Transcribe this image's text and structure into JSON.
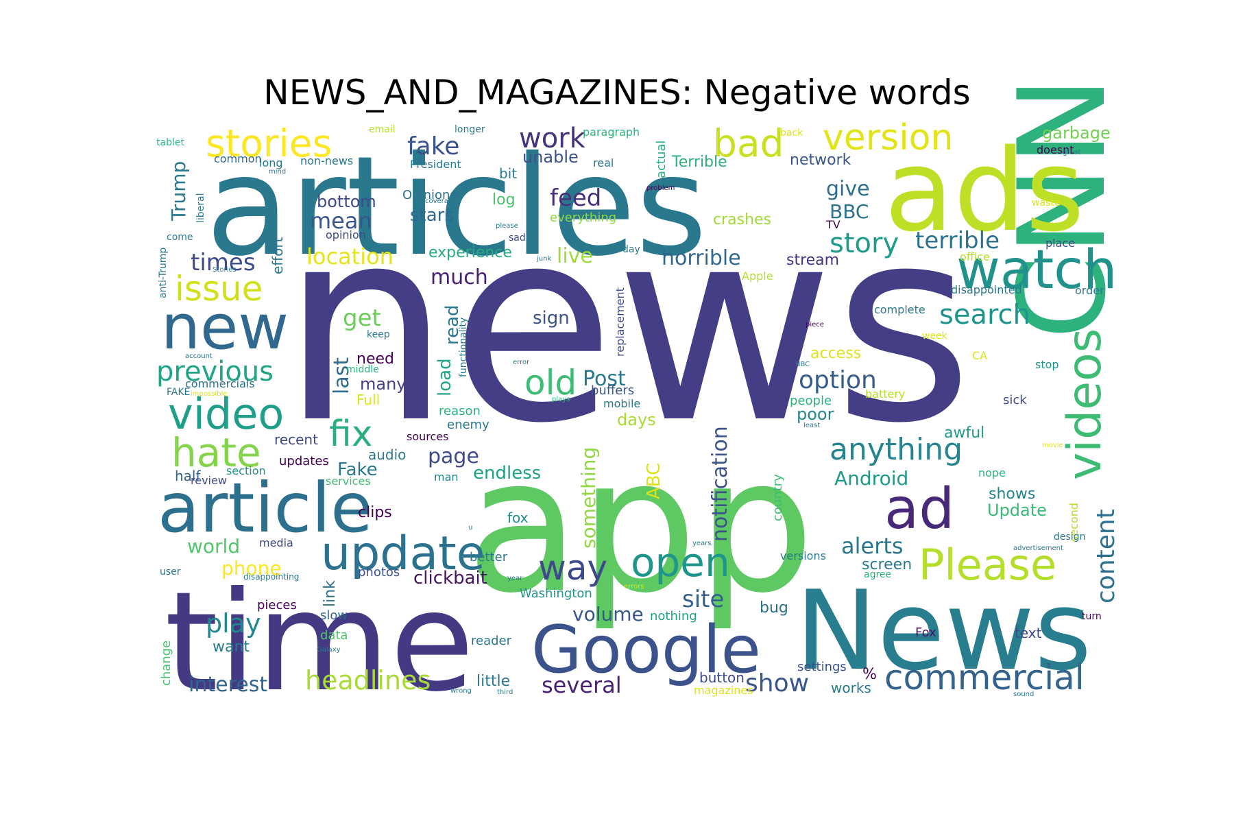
{
  "chart_data": {
    "type": "wordcloud",
    "title": "NEWS_AND_MAGAZINES: Negative words",
    "background": "#ffffff",
    "colormap": "viridis",
    "words": [
      {
        "text": "news",
        "weight": 1.0,
        "color": "#433e85"
      },
      {
        "text": "app",
        "weight": 0.92,
        "color": "#5ec962"
      },
      {
        "text": "articles",
        "weight": 0.72,
        "color": "#2a788e"
      },
      {
        "text": "time",
        "weight": 0.7,
        "color": "#443983"
      },
      {
        "text": "CNN",
        "weight": 0.62,
        "color": "#2db27d"
      },
      {
        "text": "News",
        "weight": 0.6,
        "color": "#287d8e"
      },
      {
        "text": "ads",
        "weight": 0.58,
        "color": "#bddf26"
      },
      {
        "text": "article",
        "weight": 0.4,
        "color": "#2d708e"
      },
      {
        "text": "Google",
        "weight": 0.34,
        "color": "#3b528b"
      },
      {
        "text": "new",
        "weight": 0.3,
        "color": "#31688e"
      },
      {
        "text": "watch",
        "weight": 0.28,
        "color": "#21918c"
      },
      {
        "text": "ad",
        "weight": 0.28,
        "color": "#482878"
      },
      {
        "text": "videos",
        "weight": 0.26,
        "color": "#3fbc73"
      },
      {
        "text": "update",
        "weight": 0.26,
        "color": "#2c728e"
      },
      {
        "text": "video",
        "weight": 0.24,
        "color": "#1f9e89"
      },
      {
        "text": "Please",
        "weight": 0.23,
        "color": "#b5de2b"
      },
      {
        "text": "open",
        "weight": 0.23,
        "color": "#1f968b"
      },
      {
        "text": "hate",
        "weight": 0.22,
        "color": "#84d44b"
      },
      {
        "text": "stories",
        "weight": 0.21,
        "color": "#fde725"
      },
      {
        "text": "bad",
        "weight": 0.21,
        "color": "#c8e020"
      },
      {
        "text": "version",
        "weight": 0.2,
        "color": "#e2e418"
      },
      {
        "text": "commercial",
        "weight": 0.19,
        "color": "#33638d"
      },
      {
        "text": "fix",
        "weight": 0.19,
        "color": "#29af7f"
      },
      {
        "text": "issue",
        "weight": 0.18,
        "color": "#d0e11c"
      },
      {
        "text": "old",
        "weight": 0.18,
        "color": "#3dbc74"
      },
      {
        "text": "way",
        "weight": 0.18,
        "color": "#3e4989"
      },
      {
        "text": "work",
        "weight": 0.16,
        "color": "#46337e"
      },
      {
        "text": "previous",
        "weight": 0.15,
        "color": "#20a486"
      },
      {
        "text": "anything",
        "weight": 0.15,
        "color": "#25848e"
      },
      {
        "text": "story",
        "weight": 0.14,
        "color": "#1e9b8a"
      },
      {
        "text": "search",
        "weight": 0.14,
        "color": "#1f948c"
      },
      {
        "text": "content",
        "weight": 0.14,
        "color": "#2c718e"
      },
      {
        "text": "headlines",
        "weight": 0.14,
        "color": "#a8db34"
      },
      {
        "text": "play",
        "weight": 0.14,
        "color": "#23888e"
      },
      {
        "text": "fake",
        "weight": 0.13,
        "color": "#3b528b"
      },
      {
        "text": "option",
        "weight": 0.13,
        "color": "#365c8d"
      },
      {
        "text": "terrible",
        "weight": 0.13,
        "color": "#2c728e"
      },
      {
        "text": "site",
        "weight": 0.13,
        "color": "#34608d"
      },
      {
        "text": "show",
        "weight": 0.13,
        "color": "#39568c"
      },
      {
        "text": "location",
        "weight": 0.12,
        "color": "#e5e419"
      },
      {
        "text": "feed",
        "weight": 0.12,
        "color": "#472f7d"
      },
      {
        "text": "alerts",
        "weight": 0.12,
        "color": "#2a768e"
      },
      {
        "text": "times",
        "weight": 0.12,
        "color": "#3e4a89"
      },
      {
        "text": "mean",
        "weight": 0.12,
        "color": "#39568c"
      },
      {
        "text": "notification",
        "weight": 0.12,
        "color": "#3b528b"
      },
      {
        "text": "horrible",
        "weight": 0.11,
        "color": "#31688e"
      },
      {
        "text": "get",
        "weight": 0.11,
        "color": "#6ccd5a"
      },
      {
        "text": "interest",
        "weight": 0.11,
        "color": "#32648e"
      },
      {
        "text": "live",
        "weight": 0.11,
        "color": "#9fda3a"
      },
      {
        "text": "much",
        "weight": 0.11,
        "color": "#481f70"
      },
      {
        "text": "page",
        "weight": 0.11,
        "color": "#3e4989"
      },
      {
        "text": "several",
        "weight": 0.11,
        "color": "#482173"
      },
      {
        "text": "Trump",
        "weight": 0.11,
        "color": "#2a788e"
      },
      {
        "text": "last",
        "weight": 0.11,
        "color": "#2f6c8e"
      },
      {
        "text": "Post",
        "weight": 0.1,
        "color": "#2a788e"
      },
      {
        "text": "world",
        "weight": 0.1,
        "color": "#52c569"
      },
      {
        "text": "phone",
        "weight": 0.1,
        "color": "#fde725"
      },
      {
        "text": "give",
        "weight": 0.1,
        "color": "#2e6e8e"
      },
      {
        "text": "BBC",
        "weight": 0.1,
        "color": "#2c728e"
      },
      {
        "text": "Android",
        "weight": 0.1,
        "color": "#1f998a"
      },
      {
        "text": "something",
        "weight": 0.1,
        "color": "#90d743"
      },
      {
        "text": "ABC",
        "weight": 0.1,
        "color": "#dde318"
      },
      {
        "text": "volume",
        "weight": 0.1,
        "color": "#38588c"
      },
      {
        "text": "clickbait",
        "weight": 0.1,
        "color": "#471365"
      },
      {
        "text": "Update",
        "weight": 0.09,
        "color": "#3aba76"
      },
      {
        "text": "load",
        "weight": 0.09,
        "color": "#20a386"
      },
      {
        "text": "read",
        "weight": 0.09,
        "color": "#2a788e"
      },
      {
        "text": "endless",
        "weight": 0.09,
        "color": "#1fa188"
      },
      {
        "text": "Fake",
        "weight": 0.09,
        "color": "#2a788e"
      },
      {
        "text": "sign",
        "weight": 0.09,
        "color": "#3b528b"
      },
      {
        "text": "stars",
        "weight": 0.09,
        "color": "#31688e"
      },
      {
        "text": "bottom",
        "weight": 0.09,
        "color": "#3e4a89"
      },
      {
        "text": "experience",
        "weight": 0.09,
        "color": "#25ab82"
      },
      {
        "text": "want",
        "weight": 0.08,
        "color": "#287c8e"
      },
      {
        "text": "unable",
        "weight": 0.08,
        "color": "#3b528b"
      },
      {
        "text": "crashes",
        "weight": 0.08,
        "color": "#a0da39"
      },
      {
        "text": "screen",
        "weight": 0.08,
        "color": "#2a788e"
      },
      {
        "text": "garbage",
        "weight": 0.08,
        "color": "#73d055"
      },
      {
        "text": "many",
        "weight": 0.08,
        "color": "#433e85"
      },
      {
        "text": "need",
        "weight": 0.08,
        "color": "#440154"
      },
      {
        "text": "shows",
        "weight": 0.08,
        "color": "#24878e"
      },
      {
        "text": "awful",
        "weight": 0.08,
        "color": "#1f988b"
      },
      {
        "text": "poor",
        "weight": 0.08,
        "color": "#25848e"
      },
      {
        "text": "access",
        "weight": 0.08,
        "color": "#dde318"
      },
      {
        "text": "days",
        "weight": 0.08,
        "color": "#a8db34"
      },
      {
        "text": "Terrible",
        "weight": 0.08,
        "color": "#2db27d"
      },
      {
        "text": "network",
        "weight": 0.08,
        "color": "#39568c"
      },
      {
        "text": "stream",
        "weight": 0.08,
        "color": "#46337e"
      },
      {
        "text": "link",
        "weight": 0.08,
        "color": "#2d708e"
      },
      {
        "text": "audio",
        "weight": 0.08,
        "color": "#2a788e"
      },
      {
        "text": "half",
        "weight": 0.08,
        "color": "#33638d"
      },
      {
        "text": "effort",
        "weight": 0.08,
        "color": "#2a788e"
      },
      {
        "text": "little",
        "weight": 0.08,
        "color": "#2a788e"
      },
      {
        "text": "data",
        "weight": 0.07,
        "color": "#52c569"
      },
      {
        "text": "clips",
        "weight": 0.07,
        "color": "#440154"
      },
      {
        "text": "fox",
        "weight": 0.07,
        "color": "#21918c"
      },
      {
        "text": "recent",
        "weight": 0.07,
        "color": "#3e4989"
      },
      {
        "text": "updates",
        "weight": 0.07,
        "color": "#440154"
      },
      {
        "text": "bug",
        "weight": 0.07,
        "color": "#2d708e"
      },
      {
        "text": "Fox",
        "weight": 0.07,
        "color": "#471365"
      },
      {
        "text": "text",
        "weight": 0.07,
        "color": "#3e4989"
      },
      {
        "text": "button",
        "weight": 0.07,
        "color": "#3e4a89"
      },
      {
        "text": "works",
        "weight": 0.07,
        "color": "#2a788e"
      },
      {
        "text": "settings",
        "weight": 0.07,
        "color": "#3b528b"
      },
      {
        "text": "%",
        "weight": 0.07,
        "color": "#440154"
      },
      {
        "text": "Opinions",
        "weight": 0.07,
        "color": "#2c718e"
      },
      {
        "text": "log",
        "weight": 0.07,
        "color": "#4ac16d"
      },
      {
        "text": "bit",
        "weight": 0.07,
        "color": "#287d8e"
      },
      {
        "text": "everything",
        "weight": 0.07,
        "color": "#8fd744"
      },
      {
        "text": "actual",
        "weight": 0.07,
        "color": "#2db27d"
      },
      {
        "text": "Full",
        "weight": 0.07,
        "color": "#dde318"
      },
      {
        "text": "reason",
        "weight": 0.07,
        "color": "#2db27d"
      },
      {
        "text": "enemy",
        "weight": 0.07,
        "color": "#2a788e"
      },
      {
        "text": "sources",
        "weight": 0.06,
        "color": "#440154"
      },
      {
        "text": "photos",
        "weight": 0.06,
        "color": "#3b528b"
      },
      {
        "text": "review",
        "weight": 0.06,
        "color": "#3e4989"
      },
      {
        "text": "media",
        "weight": 0.06,
        "color": "#3e4989"
      },
      {
        "text": "section",
        "weight": 0.06,
        "color": "#21918c"
      },
      {
        "text": "services",
        "weight": 0.06,
        "color": "#3fbc73"
      },
      {
        "text": "man",
        "weight": 0.06,
        "color": "#24878e"
      },
      {
        "text": "country",
        "weight": 0.06,
        "color": "#3fbc73"
      },
      {
        "text": "reader",
        "weight": 0.06,
        "color": "#2a788e"
      },
      {
        "text": "better",
        "weight": 0.06,
        "color": "#2a788e"
      },
      {
        "text": "Washington",
        "weight": 0.06,
        "color": "#1f968b"
      },
      {
        "text": "nothing",
        "weight": 0.06,
        "color": "#20a486"
      },
      {
        "text": "buffers",
        "weight": 0.06,
        "color": "#38588c"
      },
      {
        "text": "mobile",
        "weight": 0.06,
        "color": "#2a788e"
      },
      {
        "text": "slow",
        "weight": 0.06,
        "color": "#33638d"
      },
      {
        "text": "pieces",
        "weight": 0.06,
        "color": "#440154"
      },
      {
        "text": "change",
        "weight": 0.06,
        "color": "#4ac16d"
      },
      {
        "text": "commercials",
        "weight": 0.06,
        "color": "#2c718e"
      },
      {
        "text": "sick",
        "weight": 0.06,
        "color": "#3e4989"
      },
      {
        "text": "people",
        "weight": 0.06,
        "color": "#2db27d"
      },
      {
        "text": "battery",
        "weight": 0.06,
        "color": "#b5de2b"
      },
      {
        "text": "stop",
        "weight": 0.06,
        "color": "#21918c"
      },
      {
        "text": "complete",
        "weight": 0.06,
        "color": "#2a788e"
      },
      {
        "text": "disappointed",
        "weight": 0.06,
        "color": "#2a788e"
      },
      {
        "text": "order",
        "weight": 0.06,
        "color": "#2a788e"
      },
      {
        "text": "place",
        "weight": 0.06,
        "color": "#3e4989"
      },
      {
        "text": "office",
        "weight": 0.06,
        "color": "#b5de2b"
      },
      {
        "text": "TV",
        "weight": 0.06,
        "color": "#440154"
      },
      {
        "text": "waste",
        "weight": 0.06,
        "color": "#dde318"
      },
      {
        "text": "doesnt",
        "weight": 0.06,
        "color": "#440154"
      },
      {
        "text": "back",
        "weight": 0.06,
        "color": "#dde318"
      },
      {
        "text": "real",
        "weight": 0.06,
        "color": "#2a788e"
      },
      {
        "text": "President",
        "weight": 0.06,
        "color": "#2a788e"
      },
      {
        "text": "non-news",
        "weight": 0.06,
        "color": "#2a788e"
      },
      {
        "text": "common",
        "weight": 0.06,
        "color": "#31688e"
      },
      {
        "text": "long",
        "weight": 0.06,
        "color": "#2a788e"
      },
      {
        "text": "tablet",
        "weight": 0.06,
        "color": "#2db27d"
      },
      {
        "text": "email",
        "weight": 0.06,
        "color": "#b5de2b"
      },
      {
        "text": "longer",
        "weight": 0.06,
        "color": "#2a788e"
      },
      {
        "text": "paragraph",
        "weight": 0.06,
        "color": "#2db27d"
      },
      {
        "text": "liberal",
        "weight": 0.06,
        "color": "#2a788e"
      },
      {
        "text": "opinion",
        "weight": 0.06,
        "color": "#3e4989"
      },
      {
        "text": "anti-Trump",
        "weight": 0.06,
        "color": "#2a788e"
      },
      {
        "text": "come",
        "weight": 0.06,
        "color": "#2a788e"
      },
      {
        "text": "sad",
        "weight": 0.06,
        "color": "#3e4989"
      },
      {
        "text": "day",
        "weight": 0.06,
        "color": "#2a788e"
      },
      {
        "text": "replacement",
        "weight": 0.06,
        "color": "#3e4989"
      },
      {
        "text": "functionality",
        "weight": 0.06,
        "color": "#2a788e"
      },
      {
        "text": "middle",
        "weight": 0.05,
        "color": "#2db27d"
      },
      {
        "text": "keep",
        "weight": 0.05,
        "color": "#2a788e"
      },
      {
        "text": "FAKE",
        "weight": 0.05,
        "color": "#2a788e"
      },
      {
        "text": "Apple",
        "weight": 0.05,
        "color": "#b5de2b"
      },
      {
        "text": "CA",
        "weight": 0.05,
        "color": "#dde318"
      },
      {
        "text": "week",
        "weight": 0.05,
        "color": "#dde318"
      },
      {
        "text": "nope",
        "weight": 0.05,
        "color": "#2db27d"
      },
      {
        "text": "second",
        "weight": 0.05,
        "color": "#b5de2b"
      },
      {
        "text": "design",
        "weight": 0.05,
        "color": "#2a788e"
      },
      {
        "text": "versions",
        "weight": 0.05,
        "color": "#2a788e"
      },
      {
        "text": "agree",
        "weight": 0.05,
        "color": "#2db27d"
      },
      {
        "text": "turn",
        "weight": 0.05,
        "color": "#440154"
      },
      {
        "text": "magazines",
        "weight": 0.05,
        "color": "#dde318"
      },
      {
        "text": "user",
        "weight": 0.05,
        "color": "#2a788e"
      },
      {
        "text": "disappointing",
        "weight": 0.04,
        "color": "#2a788e"
      },
      {
        "text": "Galaxy",
        "weight": 0.04,
        "color": "#2a788e"
      },
      {
        "text": "wrong",
        "weight": 0.04,
        "color": "#2a788e"
      },
      {
        "text": "third",
        "weight": 0.04,
        "color": "#2a788e"
      },
      {
        "text": "sound",
        "weight": 0.04,
        "color": "#2a788e"
      },
      {
        "text": "years",
        "weight": 0.04,
        "color": "#2a788e"
      },
      {
        "text": "year",
        "weight": 0.04,
        "color": "#2a788e"
      },
      {
        "text": "errors",
        "weight": 0.04,
        "color": "#dde318"
      },
      {
        "text": "advertisement",
        "weight": 0.04,
        "color": "#2a788e"
      },
      {
        "text": "movie",
        "weight": 0.04,
        "color": "#dde318"
      },
      {
        "text": "least",
        "weight": 0.04,
        "color": "#2a788e"
      },
      {
        "text": "piece",
        "weight": 0.04,
        "color": "#440154"
      },
      {
        "text": "plays",
        "weight": 0.04,
        "color": "#2db27d"
      },
      {
        "text": "error",
        "weight": 0.04,
        "color": "#2a788e"
      },
      {
        "text": "impossible",
        "weight": 0.04,
        "color": "#dde318"
      },
      {
        "text": "account",
        "weight": 0.04,
        "color": "#2a788e"
      },
      {
        "text": "junk",
        "weight": 0.04,
        "color": "#2a788e"
      },
      {
        "text": "please",
        "weight": 0.04,
        "color": "#2a788e"
      },
      {
        "text": "coverage",
        "weight": 0.04,
        "color": "#2a788e"
      },
      {
        "text": "problem",
        "weight": 0.04,
        "color": "#440154"
      },
      {
        "text": "mind",
        "weight": 0.04,
        "color": "#2a788e"
      },
      {
        "text": "Stories",
        "weight": 0.04,
        "color": "#2a788e"
      },
      {
        "text": "great",
        "weight": 0.04,
        "color": "#2a788e"
      },
      {
        "text": "NBC",
        "weight": 0.04,
        "color": "#2a788e"
      },
      {
        "text": "u",
        "weight": 0.03,
        "color": "#2a788e"
      }
    ]
  }
}
